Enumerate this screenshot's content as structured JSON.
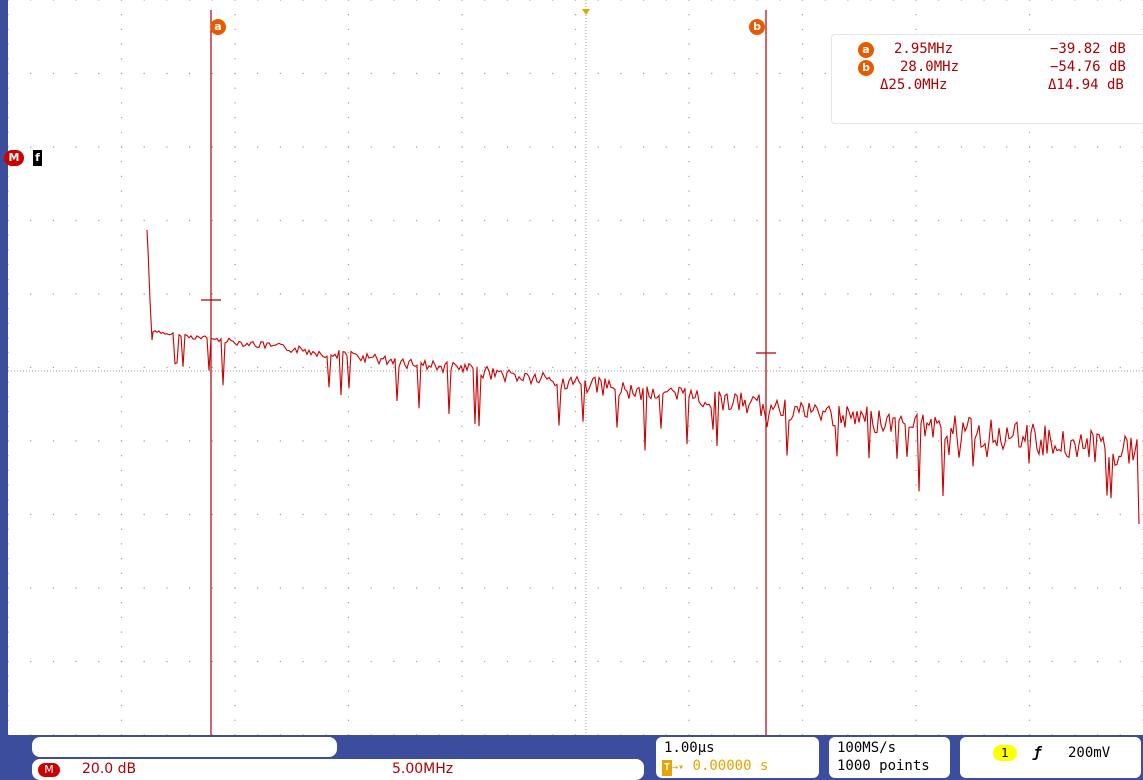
{
  "cursors": {
    "a_label": "a",
    "b_label": "b",
    "a_freq": "2.95MHz",
    "a_level": "−39.82 dB",
    "b_freq": "28.0MHz",
    "b_level": "−54.76 dB",
    "delta_freq": "Δ25.0MHz",
    "delta_level": "Δ14.94 dB"
  },
  "markers": {
    "math_badge": "M",
    "f_label": "f"
  },
  "status": {
    "math_scale": "20.0 dB",
    "math_span": "5.00MHz",
    "timebase": "1.00µs",
    "trigger_pos": "0.00000 s",
    "sample_rate": "100MS/s",
    "record_length": "1000 points",
    "trigger_channel": "1",
    "trigger_level": "200mV",
    "trigger_slope_symbol": "ƒ"
  },
  "colors": {
    "trace": "#cc0000",
    "cursor": "#b00000",
    "frame_blue": "#3d4d9e",
    "cursor_badge": "#e85a00",
    "trigger_badge": "#ffff00"
  }
}
